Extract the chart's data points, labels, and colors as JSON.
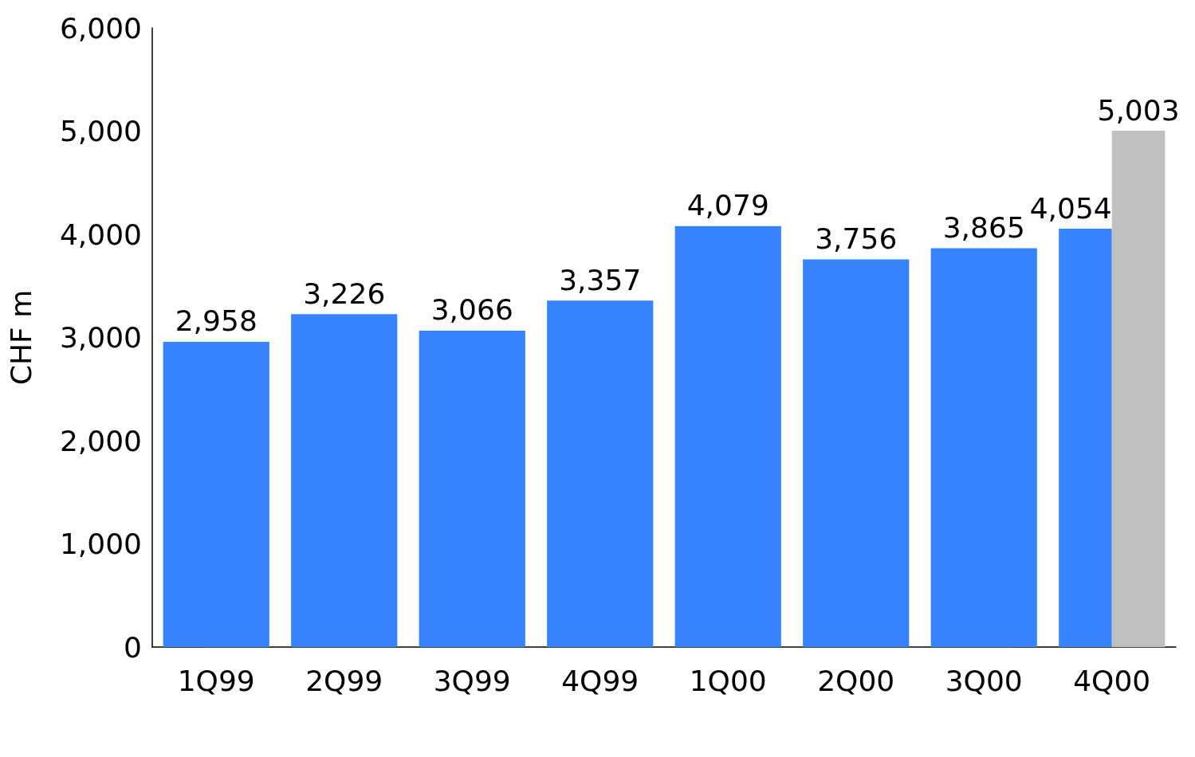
{
  "chart_data": {
    "type": "bar",
    "ylabel": "CHF m",
    "categories": [
      "1Q99",
      "2Q99",
      "3Q99",
      "4Q99",
      "1Q00",
      "2Q00",
      "3Q00",
      "4Q00"
    ],
    "series": [
      {
        "color": "#3884fe",
        "values": [
          2958,
          3226,
          3066,
          3357,
          4079,
          3756,
          3865,
          4054
        ],
        "value_labels": [
          "2,958",
          "3,226",
          "3,066",
          "3,357",
          "4,079",
          "3,756",
          "3,865",
          "4,054"
        ]
      },
      {
        "color": "#c0c0c0",
        "values": [
          null,
          null,
          null,
          null,
          null,
          null,
          null,
          5003
        ],
        "value_labels": [
          null,
          null,
          null,
          null,
          null,
          null,
          null,
          "5,003"
        ]
      }
    ],
    "ylim": [
      0,
      6000
    ],
    "yticks": [
      0,
      {
        "value": 1000,
        "label": "1,000"
      },
      {
        "value": 2000,
        "label": "2,000"
      },
      {
        "value": 3000,
        "label": "3,000"
      },
      {
        "value": 4000,
        "label": "4,000"
      },
      {
        "value": 5000,
        "label": "5,000"
      },
      {
        "value": 6000,
        "label": "6,000"
      }
    ]
  }
}
